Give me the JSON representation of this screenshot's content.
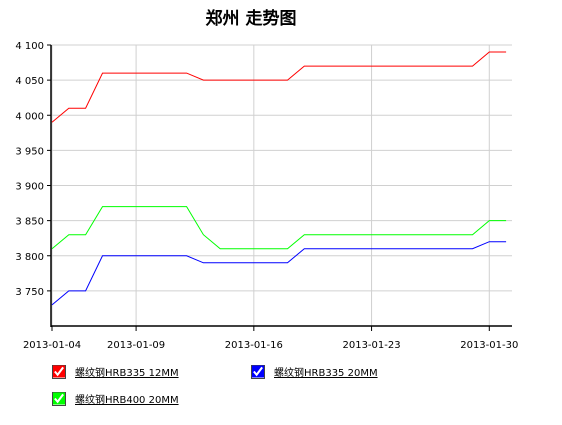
{
  "chart_data": {
    "type": "line",
    "title": "郑州 走势图",
    "x": [
      "2013-01-04",
      "2013-01-05",
      "2013-01-06",
      "2013-01-07",
      "2013-01-08",
      "2013-01-09",
      "2013-01-10",
      "2013-01-11",
      "2013-01-12",
      "2013-01-13",
      "2013-01-14",
      "2013-01-15",
      "2013-01-16",
      "2013-01-17",
      "2013-01-18",
      "2013-01-19",
      "2013-01-20",
      "2013-01-21",
      "2013-01-22",
      "2013-01-23",
      "2013-01-24",
      "2013-01-25",
      "2013-01-26",
      "2013-01-27",
      "2013-01-28",
      "2013-01-29",
      "2013-01-30",
      "2013-01-31"
    ],
    "xticks": [
      "2013-01-04",
      "2013-01-09",
      "2013-01-16",
      "2013-01-23",
      "2013-01-30"
    ],
    "ylim": [
      3700,
      4100
    ],
    "yticks": [
      "3 750",
      "3 800",
      "3 850",
      "3 900",
      "3 950",
      "4 000",
      "4 050",
      "4 100"
    ],
    "grid": true,
    "legend_position": "bottom",
    "series": [
      {
        "name": "螺纹钢HRB335 12MM",
        "color": "#ff0000",
        "values": [
          3990,
          4010,
          4010,
          4060,
          4060,
          4060,
          4060,
          4060,
          4060,
          4050,
          4050,
          4050,
          4050,
          4050,
          4050,
          4070,
          4070,
          4070,
          4070,
          4070,
          4070,
          4070,
          4070,
          4070,
          4070,
          4070,
          4090,
          4090
        ]
      },
      {
        "name": "螺纹钢HRB335 20MM",
        "color": "#0000ff",
        "values": [
          3730,
          3750,
          3750,
          3800,
          3800,
          3800,
          3800,
          3800,
          3800,
          3790,
          3790,
          3790,
          3790,
          3790,
          3790,
          3810,
          3810,
          3810,
          3810,
          3810,
          3810,
          3810,
          3810,
          3810,
          3810,
          3810,
          3820,
          3820
        ]
      },
      {
        "name": "螺纹钢HRB400 20MM",
        "color": "#00ff00",
        "values": [
          3810,
          3830,
          3830,
          3870,
          3870,
          3870,
          3870,
          3870,
          3870,
          3830,
          3810,
          3810,
          3810,
          3810,
          3810,
          3830,
          3830,
          3830,
          3830,
          3830,
          3830,
          3830,
          3830,
          3830,
          3830,
          3830,
          3850,
          3850
        ]
      }
    ]
  }
}
